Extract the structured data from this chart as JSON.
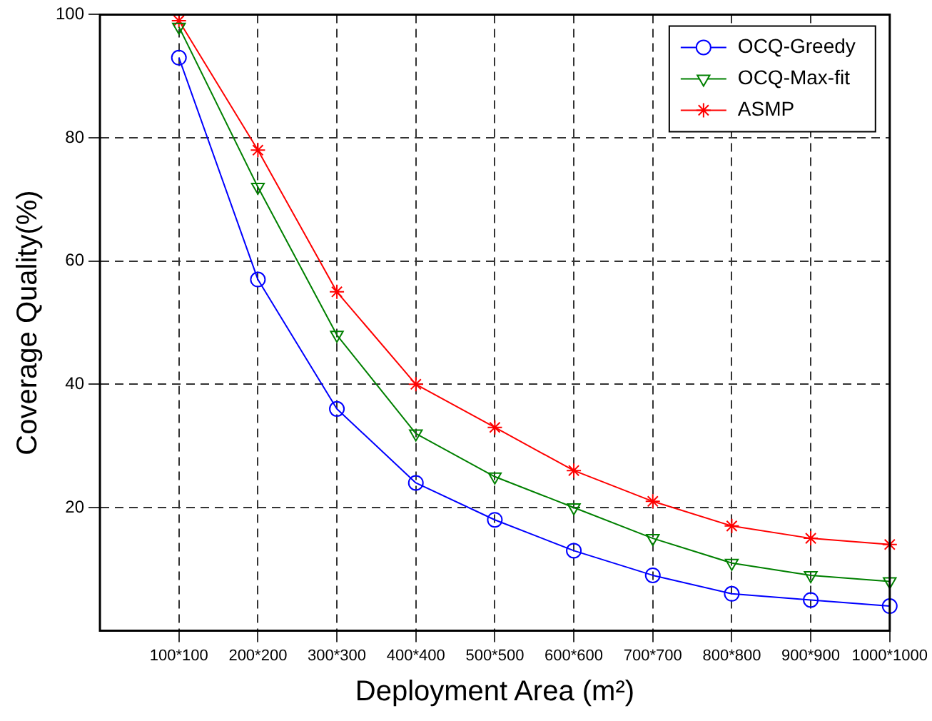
{
  "chart_data": {
    "type": "line",
    "xlabel": "Deployment Area (m²)",
    "ylabel": "Coverage Quality(%)",
    "categories": [
      "100*100",
      "200*200",
      "300*300",
      "400*400",
      "500*500",
      "600*600",
      "700*700",
      "800*800",
      "900*900",
      "1000*1000"
    ],
    "ylim": [
      0,
      100
    ],
    "yticks": [
      20,
      40,
      60,
      80,
      100
    ],
    "grid": true,
    "legend": "top right",
    "line_style": "solid",
    "series": [
      {
        "name": "OCQ-Greedy",
        "color": "#0000ff",
        "marker": "circle",
        "values": [
          93,
          57,
          36,
          24,
          18,
          13,
          9,
          6,
          5,
          4
        ]
      },
      {
        "name": "OCQ-Max-fit",
        "color": "#008000",
        "marker": "triangle",
        "values": [
          98,
          72,
          48,
          32,
          25,
          20,
          15,
          11,
          9,
          8
        ]
      },
      {
        "name": "ASMP",
        "color": "#ff0000",
        "marker": "cross",
        "values": [
          99,
          78,
          55,
          40,
          33,
          26,
          21,
          17,
          15,
          14
        ]
      }
    ]
  }
}
